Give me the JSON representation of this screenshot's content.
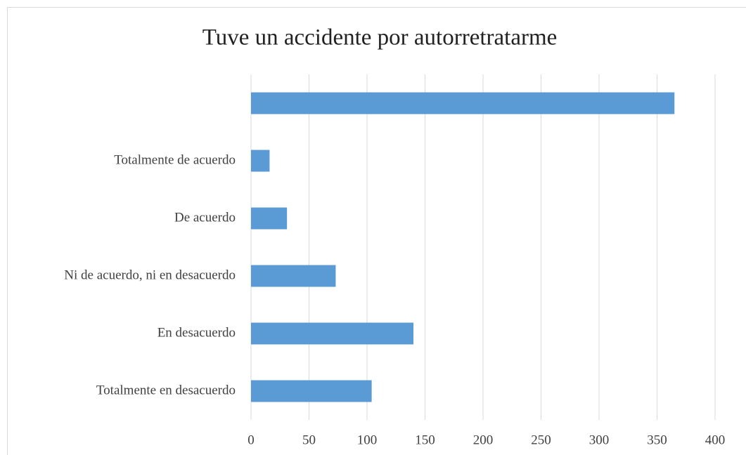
{
  "chart_data": {
    "type": "bar",
    "orientation": "horizontal",
    "title": "Tuve un accidente por autorretratarme",
    "categories": [
      null,
      "Totalmente de acuerdo",
      "De acuerdo",
      "Ni de acuerdo, ni en desacuerdo",
      "En desacuerdo",
      "Totalmente en desacuerdo"
    ],
    "values": [
      365,
      16,
      31,
      73,
      140,
      104
    ],
    "color": "#5b9bd5",
    "xlim": [
      0,
      400
    ],
    "xticks": [
      0,
      50,
      100,
      150,
      200,
      250,
      300,
      350,
      400
    ],
    "grid": true
  }
}
